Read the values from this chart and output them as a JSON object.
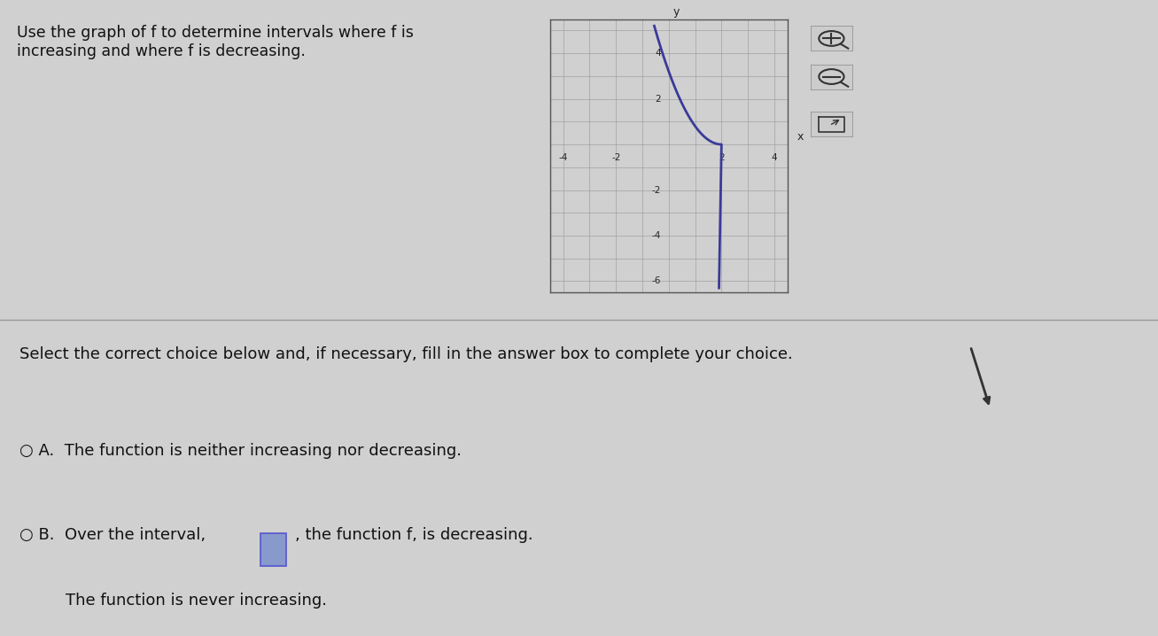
{
  "title_text": "Use the graph of f to determine intervals where f is\nincreasing and where f is decreasing.",
  "title_fontsize": 12.5,
  "background_color": "#d0d0d0",
  "curve_color": "#3a3a9a",
  "curve_linewidth": 2.0,
  "axis_color": "#222222",
  "grid_color": "#999999",
  "grid_box_color": "#555555",
  "xlim": [
    -4.5,
    4.5
  ],
  "ylim": [
    -6.5,
    5.5
  ],
  "xticks": [
    -4,
    -2,
    2,
    4
  ],
  "yticks": [
    -6,
    -4,
    -2,
    2,
    4
  ],
  "xlabel": "x",
  "ylabel": "y",
  "question_text": "Select the correct choice below and, if necessary, fill in the answer box to complete your choice.",
  "choice_A": "A.  The function is neither increasing nor decreasing.",
  "choice_B_part1": "B.  Over the interval,",
  "choice_B_part2": ", the function f, is decreasing.",
  "choice_B_line2": "The function is never increasing.",
  "text_fontsize": 13,
  "choice_fontsize": 13
}
